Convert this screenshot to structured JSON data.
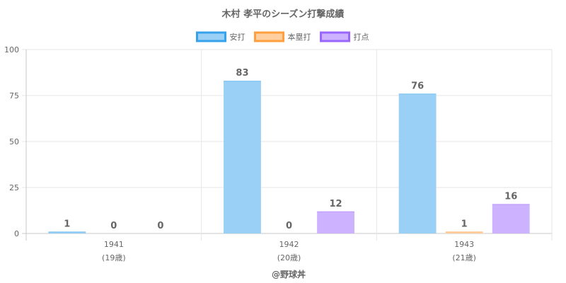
{
  "chart_data": {
    "type": "bar",
    "title": "木村 孝平のシーズン打撃成績",
    "categories": [
      "1941",
      "1942",
      "1943"
    ],
    "category_sublabels": [
      "(19歳)",
      "(20歳)",
      "(21歳)"
    ],
    "series": [
      {
        "name": "安打",
        "values": [
          1,
          83,
          76
        ],
        "color": "#9ad0f5",
        "border_color": "#36a2eb"
      },
      {
        "name": "本塁打",
        "values": [
          0,
          0,
          1
        ],
        "color": "#ffcf9f",
        "border_color": "#ff9f40"
      },
      {
        "name": "打点",
        "values": [
          0,
          12,
          16
        ],
        "color": "#ccb2ff",
        "border_color": "#9966ff"
      }
    ],
    "ylim": [
      0,
      100
    ],
    "yticks": [
      0,
      25,
      50,
      75,
      100
    ],
    "grid": true,
    "legend_position": "top",
    "xlabel": "",
    "ylabel": ""
  },
  "credit": "@野球丼"
}
